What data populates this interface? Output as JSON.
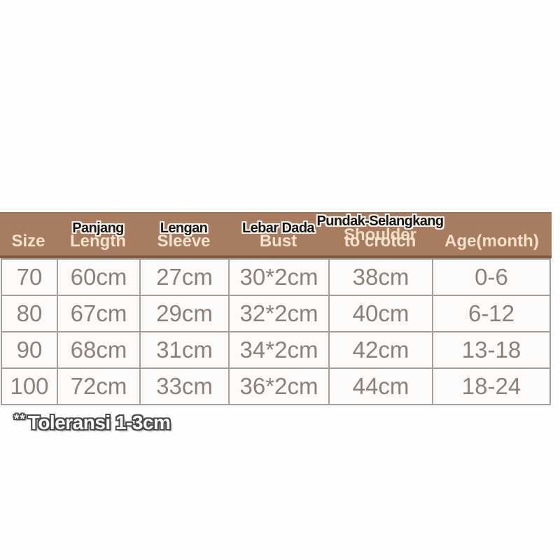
{
  "colors": {
    "page_background": "#fefefe",
    "header_background": "#a87d5f",
    "header_text_cream": "#f4e2ce",
    "overlay_label_black": "#181512",
    "body_text": "#8d8076",
    "grid_border": "#a4a09b"
  },
  "table": {
    "columns": [
      {
        "key": "size",
        "label_local": "",
        "label_en": "Size"
      },
      {
        "key": "length",
        "label_local": "Panjang",
        "label_en": "Length"
      },
      {
        "key": "sleeve",
        "label_local": "Lengan",
        "label_en": "Sleeve"
      },
      {
        "key": "bust",
        "label_local": "Lebar Dada",
        "label_en": "Bust"
      },
      {
        "key": "shoulder_to_crotch",
        "label_local": "Pundak-Selangkang",
        "label_en_line1": "Shoulder",
        "label_en_line2": "to crotch"
      },
      {
        "key": "age",
        "label_local": "",
        "label_en": "Age(month)"
      }
    ],
    "rows": [
      {
        "size": "70",
        "length": "60cm",
        "sleeve": "27cm",
        "bust": "30*2cm",
        "shoulder_to_crotch": "38cm",
        "age": "0-6"
      },
      {
        "size": "80",
        "length": "67cm",
        "sleeve": "29cm",
        "bust": "32*2cm",
        "shoulder_to_crotch": "40cm",
        "age": "6-12"
      },
      {
        "size": "90",
        "length": "68cm",
        "sleeve": "31cm",
        "bust": "34*2cm",
        "shoulder_to_crotch": "42cm",
        "age": "13-18"
      },
      {
        "size": "100",
        "length": "72cm",
        "sleeve": "33cm",
        "bust": "36*2cm",
        "shoulder_to_crotch": "44cm",
        "age": "18-24"
      }
    ]
  },
  "footnote": {
    "marker": "**",
    "text": "Toleransi 1-3cm"
  }
}
